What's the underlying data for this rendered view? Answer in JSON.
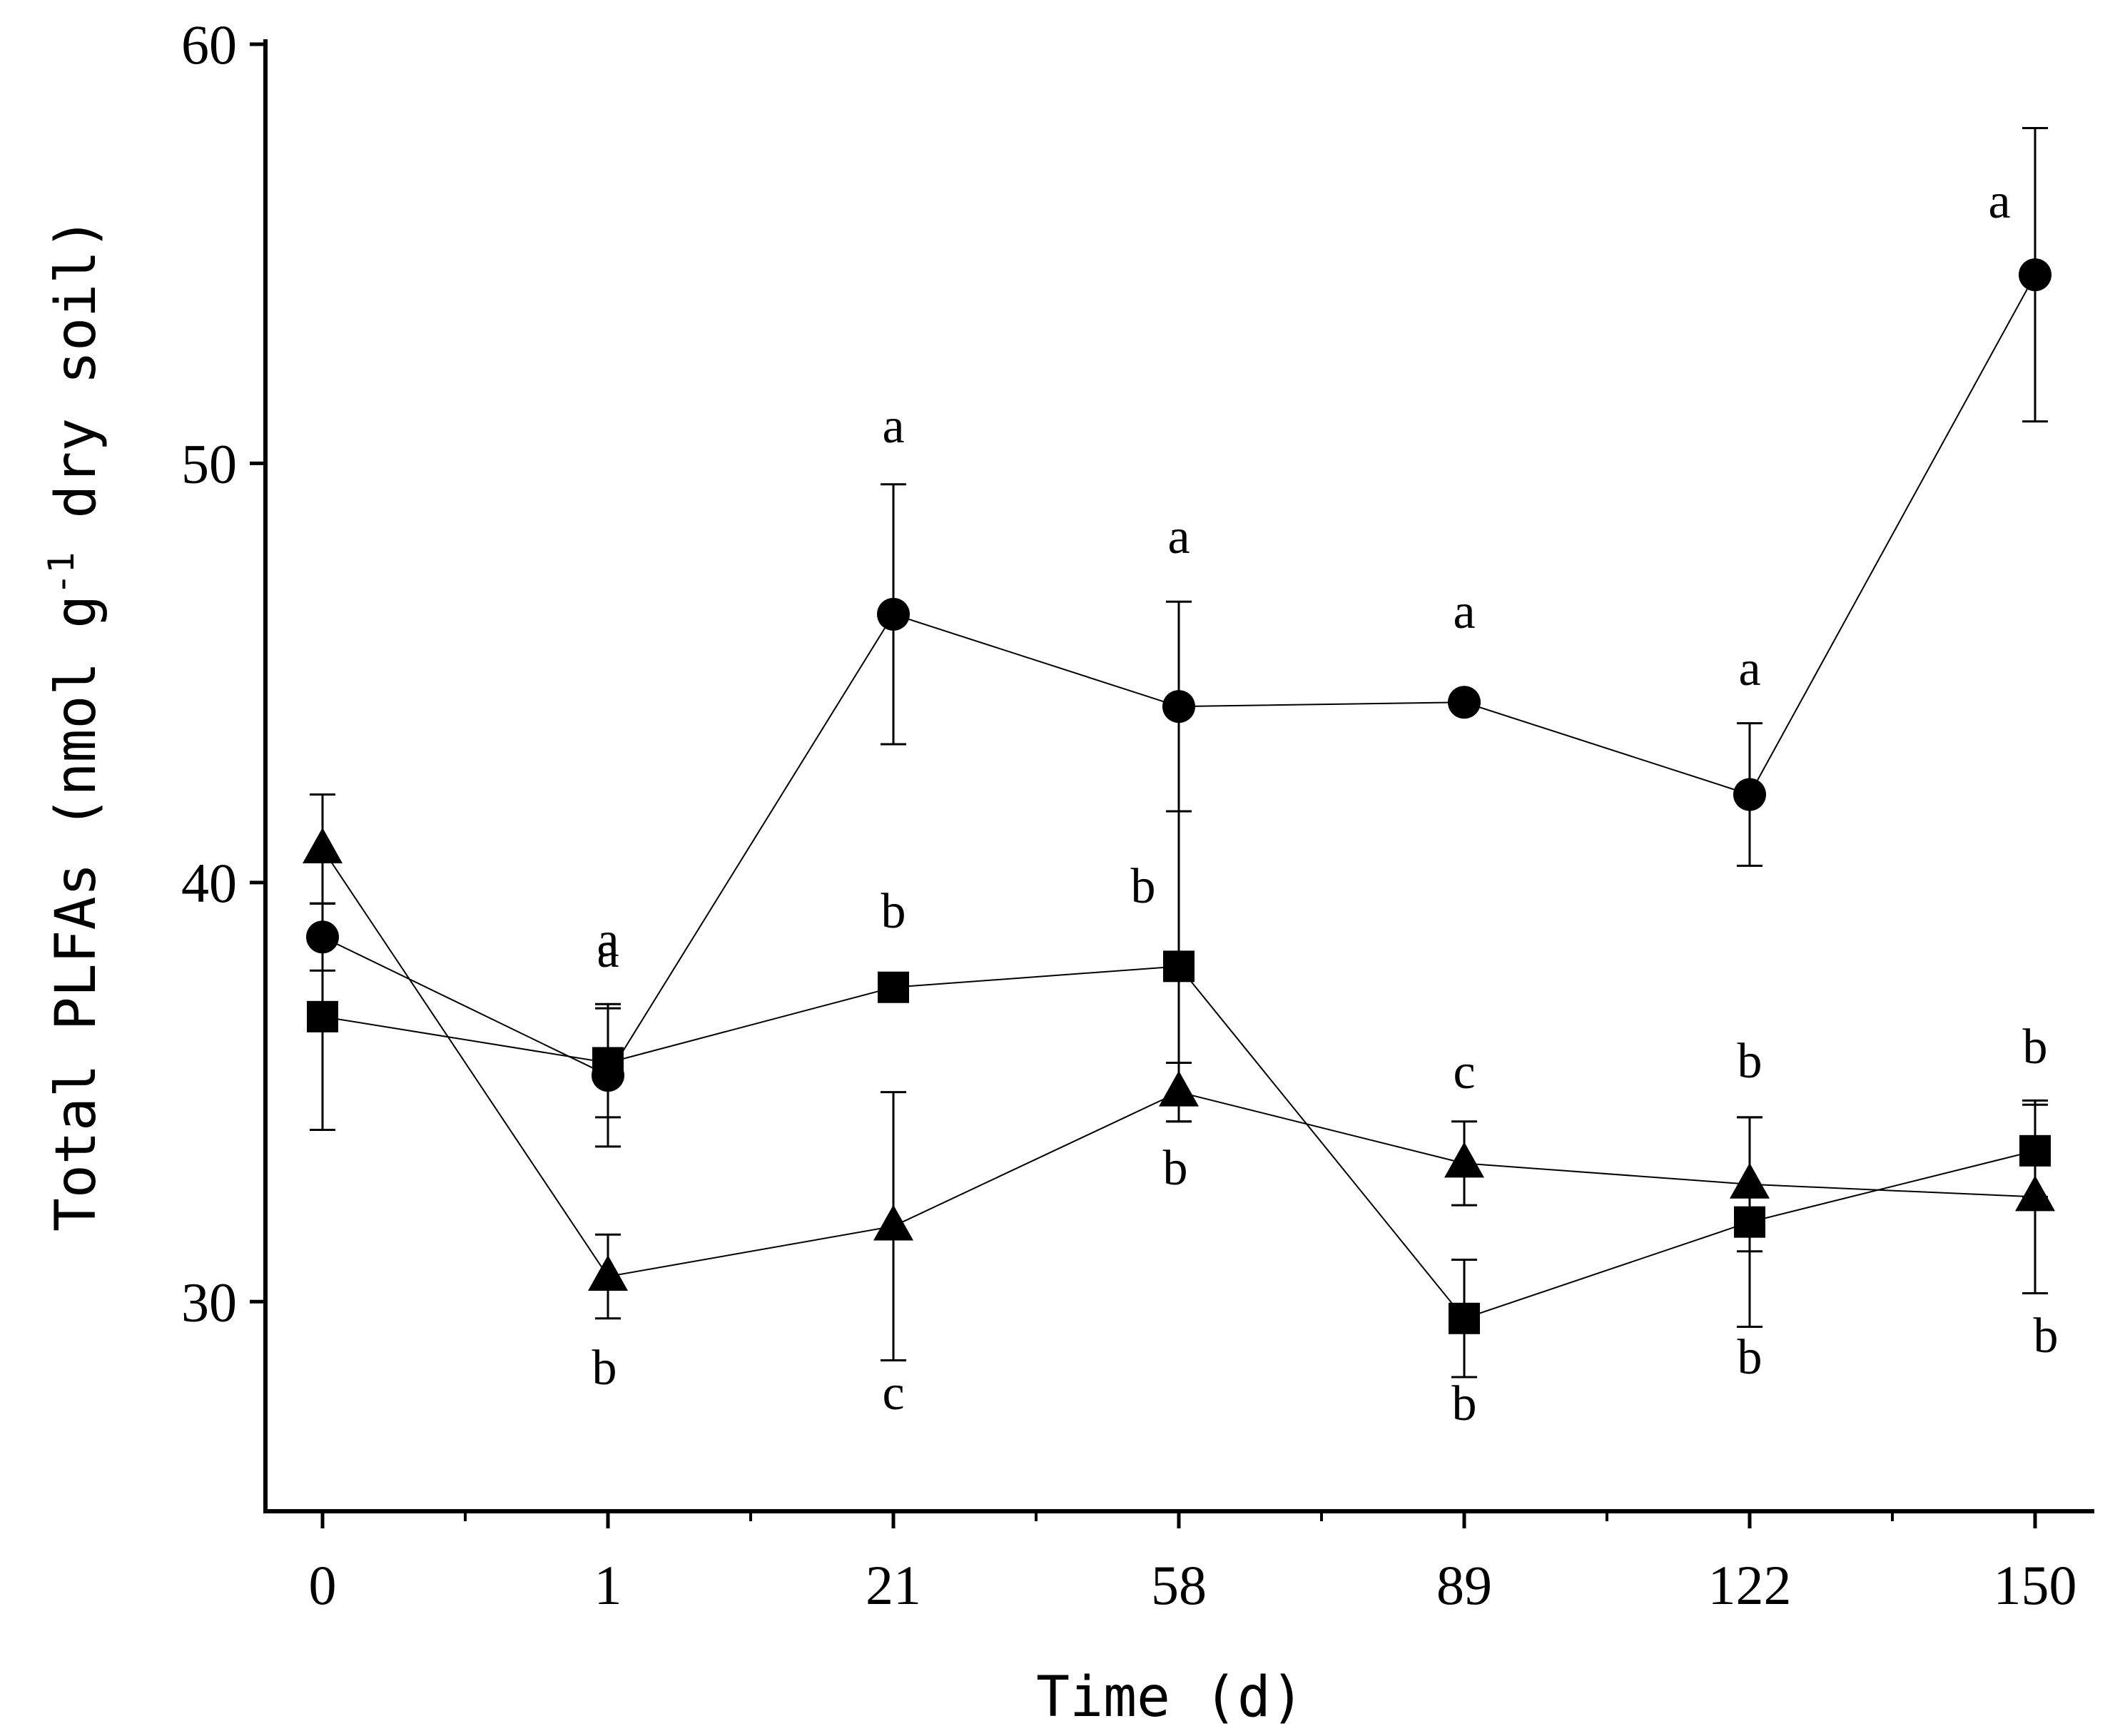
{
  "chart_data": {
    "type": "line",
    "title": "",
    "xlabel": "Time (d)",
    "ylabel": "Total PLFAs (nmol g-1 dry soil)",
    "ylabel_parts": {
      "before": "Total PLFAs (nmol g",
      "sup": "-1",
      "after": " dry soil)"
    },
    "categories": [
      "0",
      "1",
      "21",
      "58",
      "89",
      "122",
      "150"
    ],
    "ylim": [
      25,
      60
    ],
    "yticks": [
      "30",
      "40",
      "50",
      "60"
    ],
    "grid": false,
    "series": [
      {
        "name": "circle",
        "marker": "circle",
        "values": [
          38.7,
          35.4,
          46.4,
          44.2,
          44.3,
          42.1,
          54.5
        ],
        "errors": [
          0.8,
          1.7,
          3.1,
          2.5,
          0.0,
          1.7,
          3.5
        ],
        "labels": [
          "",
          "a",
          "a",
          "a",
          "a",
          "a",
          "a"
        ]
      },
      {
        "name": "square",
        "marker": "square",
        "values": [
          36.8,
          35.7,
          37.5,
          38.0,
          29.6,
          31.9,
          33.6
        ],
        "errors": [
          2.7,
          1.3,
          0.0,
          3.7,
          1.4,
          2.5,
          1.1
        ],
        "labels": [
          "",
          "a",
          "b",
          "b",
          "b",
          "b",
          "b"
        ]
      },
      {
        "name": "triangle",
        "marker": "triangle",
        "values": [
          40.8,
          30.6,
          31.8,
          35.0,
          33.3,
          32.8,
          32.5
        ],
        "errors": [
          1.3,
          1.0,
          3.2,
          0.7,
          1.0,
          1.6,
          2.3
        ],
        "labels": [
          "",
          "b",
          "c",
          "b",
          "c",
          "b",
          "b"
        ]
      }
    ]
  }
}
